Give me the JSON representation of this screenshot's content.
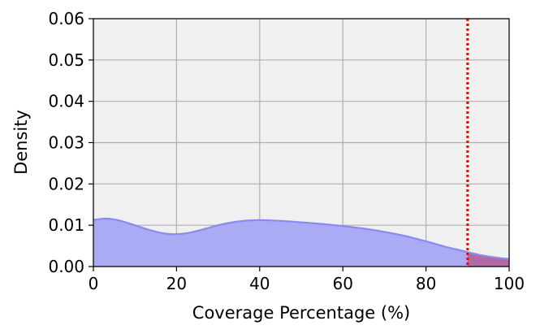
{
  "chart_data": {
    "type": "area",
    "title": "",
    "xlabel": "Coverage Percentage (%)",
    "ylabel": "Density",
    "xlim": [
      0,
      100
    ],
    "ylim": [
      0,
      0.06
    ],
    "x_ticks": [
      0,
      20,
      40,
      60,
      80,
      100
    ],
    "y_ticks": [
      0.0,
      0.01,
      0.02,
      0.03,
      0.04,
      0.05,
      0.06
    ],
    "x_tick_labels": [
      "0",
      "20",
      "40",
      "60",
      "80",
      "100"
    ],
    "y_tick_labels": [
      "0.00",
      "0.01",
      "0.02",
      "0.03",
      "0.04",
      "0.05",
      "0.06"
    ],
    "grid": true,
    "threshold": 90,
    "series": [
      {
        "x": [
          0,
          3,
          6,
          10,
          14,
          18,
          22,
          26,
          30,
          34,
          38,
          42,
          46,
          50,
          55,
          60,
          65,
          70,
          75,
          80,
          85,
          88,
          90,
          93,
          96,
          100
        ],
        "y": [
          0.0113,
          0.0116,
          0.0112,
          0.01,
          0.0087,
          0.0079,
          0.008,
          0.0089,
          0.01,
          0.0108,
          0.0112,
          0.0112,
          0.011,
          0.0107,
          0.0103,
          0.0098,
          0.0092,
          0.0084,
          0.0074,
          0.0061,
          0.0047,
          0.004,
          0.0035,
          0.0028,
          0.0023,
          0.0018
        ]
      }
    ],
    "colors": {
      "fill": "#aaaaf5",
      "line": "#8a8af0",
      "highlight": "#b26aa5",
      "threshold": "#ff0000",
      "plot_bg": "#f0f0f0",
      "grid": "#b0b0b0"
    }
  }
}
